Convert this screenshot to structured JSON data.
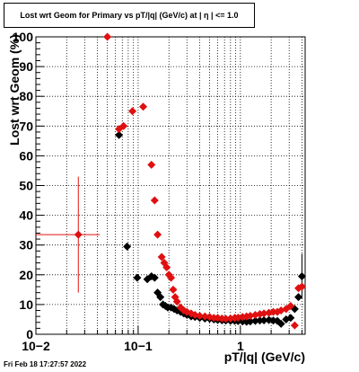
{
  "title": "Lost wrt Geom for Primary vs pT/|q| (GeV/c) at |  η | <= 1.0",
  "footer": "Fri Feb 18 17:27:57 2022",
  "chart_data": {
    "type": "scatter",
    "xlabel": "pT/|q| (GeV/c)",
    "ylabel": "Lost wrt Geom (%)",
    "xscale": "log",
    "xlim": [
      0.01,
      4.3
    ],
    "ylim": [
      0,
      100
    ],
    "x_tick_labels": [
      "10−2",
      "10−1",
      "1"
    ],
    "y_tick_labels": [
      "0",
      "10",
      "20",
      "30",
      "40",
      "50",
      "60",
      "70",
      "80",
      "90",
      "100"
    ],
    "grid": true,
    "series": [
      {
        "color": "#000000",
        "marker": "diamond",
        "points": [
          [
            0.065,
            67
          ],
          [
            0.078,
            29.5
          ],
          [
            0.098,
            19
          ],
          [
            0.123,
            18.5
          ],
          [
            0.135,
            19.5
          ],
          [
            0.145,
            19
          ],
          [
            0.155,
            14
          ],
          [
            0.165,
            12.5
          ],
          [
            0.175,
            10
          ],
          [
            0.185,
            9.5
          ],
          [
            0.195,
            9
          ],
          [
            0.21,
            9
          ],
          [
            0.225,
            8.5
          ],
          [
            0.24,
            8
          ],
          [
            0.26,
            7.5
          ],
          [
            0.28,
            7
          ],
          [
            0.3,
            6.5
          ],
          [
            0.33,
            6
          ],
          [
            0.36,
            5.8
          ],
          [
            0.4,
            5.5
          ],
          [
            0.45,
            5.3
          ],
          [
            0.5,
            5.2
          ],
          [
            0.55,
            5
          ],
          [
            0.6,
            4.8
          ],
          [
            0.66,
            4.7
          ],
          [
            0.72,
            4.6
          ],
          [
            0.8,
            4.5
          ],
          [
            0.88,
            4.5
          ],
          [
            0.95,
            4.4
          ],
          [
            1.05,
            4.3
          ],
          [
            1.15,
            4.2
          ],
          [
            1.25,
            4.3
          ],
          [
            1.4,
            4.5
          ],
          [
            1.55,
            4.6
          ],
          [
            1.7,
            4.7
          ],
          [
            1.9,
            4.8
          ],
          [
            2.1,
            4.6
          ],
          [
            2.3,
            4.5
          ],
          [
            2.5,
            3.5
          ],
          [
            2.8,
            5
          ],
          [
            3.1,
            5.5
          ],
          [
            3.4,
            8.5
          ],
          [
            3.7,
            12.5
          ],
          [
            4.0,
            19.5
          ]
        ]
      },
      {
        "color": "#e01010",
        "marker": "diamond",
        "points": [
          [
            0.026,
            33.5
          ],
          [
            0.05,
            100
          ],
          [
            0.065,
            69
          ],
          [
            0.072,
            70
          ],
          [
            0.088,
            75
          ],
          [
            0.112,
            76.5
          ],
          [
            0.135,
            57
          ],
          [
            0.145,
            45
          ],
          [
            0.155,
            33.5
          ],
          [
            0.17,
            26
          ],
          [
            0.18,
            24
          ],
          [
            0.19,
            22.5
          ],
          [
            0.2,
            20
          ],
          [
            0.21,
            19
          ],
          [
            0.22,
            15
          ],
          [
            0.23,
            12.5
          ],
          [
            0.24,
            11
          ],
          [
            0.26,
            9
          ],
          [
            0.28,
            8
          ],
          [
            0.3,
            7.5
          ],
          [
            0.33,
            7
          ],
          [
            0.36,
            6.5
          ],
          [
            0.4,
            6.2
          ],
          [
            0.45,
            6
          ],
          [
            0.5,
            5.8
          ],
          [
            0.55,
            5.5
          ],
          [
            0.6,
            5.5
          ],
          [
            0.66,
            5.3
          ],
          [
            0.72,
            5.2
          ],
          [
            0.8,
            5.3
          ],
          [
            0.88,
            5.5
          ],
          [
            0.95,
            5.6
          ],
          [
            1.05,
            5.8
          ],
          [
            1.15,
            6
          ],
          [
            1.25,
            6.2
          ],
          [
            1.4,
            6.5
          ],
          [
            1.55,
            6.8
          ],
          [
            1.7,
            7
          ],
          [
            1.9,
            7.2
          ],
          [
            2.1,
            7.5
          ],
          [
            2.3,
            7.5
          ],
          [
            2.5,
            8
          ],
          [
            2.8,
            8.5
          ],
          [
            3.1,
            9.5
          ],
          [
            3.4,
            3
          ],
          [
            3.7,
            15.5
          ],
          [
            4.0,
            16
          ]
        ]
      }
    ],
    "error_bars": [
      {
        "color": "#e01010",
        "x": 0.026,
        "y": 33.5,
        "xerr": [
          0.01,
          0.042
        ],
        "yerr": [
          14,
          53
        ]
      },
      {
        "color": "#000000",
        "x": 4.0,
        "y": 19.5,
        "xerr": [
          3.85,
          4.15
        ],
        "yerr": [
          12,
          27
        ]
      }
    ]
  }
}
